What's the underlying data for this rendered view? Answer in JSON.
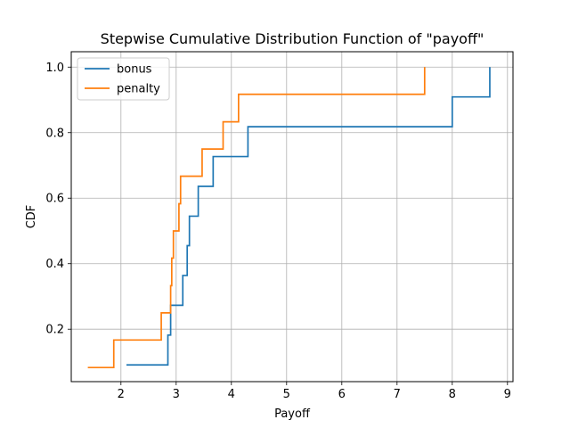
{
  "chart_data": {
    "type": "line",
    "title": "Stepwise Cumulative Distribution Function of \"payoff\"",
    "xlabel": "Payoff",
    "ylabel": "CDF",
    "xlim": [
      1.1,
      9.1
    ],
    "ylim": [
      0.04,
      1.047
    ],
    "xticks": [
      2,
      3,
      4,
      5,
      6,
      7,
      8,
      9
    ],
    "yticks": [
      0.2,
      0.4,
      0.6,
      0.8,
      1.0
    ],
    "xtick_labels": [
      "2",
      "3",
      "4",
      "5",
      "6",
      "7",
      "8",
      "9"
    ],
    "ytick_labels": [
      "0.2",
      "0.4",
      "0.6",
      "0.8",
      "1.0"
    ],
    "grid": true,
    "legend_position": "top-left",
    "series": [
      {
        "name": "bonus",
        "color": "#1f77b4",
        "step": "post",
        "x": [
          2.1,
          2.85,
          2.9,
          3.12,
          3.2,
          3.24,
          3.4,
          3.67,
          4.3,
          8.0,
          8.68
        ],
        "y": [
          0.091,
          0.182,
          0.273,
          0.364,
          0.455,
          0.545,
          0.636,
          0.727,
          0.818,
          0.909,
          1.0
        ]
      },
      {
        "name": "penalty",
        "color": "#ff7f0e",
        "step": "post",
        "x": [
          1.4,
          1.87,
          2.73,
          2.9,
          2.92,
          2.95,
          3.05,
          3.08,
          3.47,
          3.85,
          4.13,
          7.5
        ],
        "y": [
          0.083,
          0.167,
          0.25,
          0.333,
          0.417,
          0.5,
          0.583,
          0.667,
          0.75,
          0.833,
          0.917,
          1.0
        ]
      }
    ]
  }
}
